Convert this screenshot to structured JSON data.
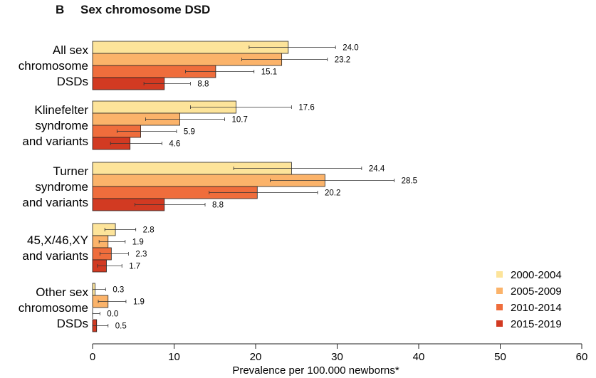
{
  "panel": {
    "letter": "B",
    "title": "Sex chromosome DSD"
  },
  "chart_data": {
    "type": "bar",
    "orientation": "horizontal",
    "xlabel": "Prevalence per 100.000 newborns*",
    "xlim": [
      0,
      60
    ],
    "xticks": [
      0,
      10,
      20,
      30,
      40,
      50,
      60
    ],
    "grid": false,
    "legend_position": "bottom-right",
    "categories": [
      {
        "lines": [
          "All sex",
          "chromosome",
          "DSDs"
        ]
      },
      {
        "lines": [
          "Klinefelter",
          "syndrome",
          "and variants"
        ]
      },
      {
        "lines": [
          "Turner",
          "syndrome",
          "and variants"
        ]
      },
      {
        "lines": [
          "45,X/46,XY",
          "and variants"
        ]
      },
      {
        "lines": [
          "Other sex",
          "chromosome",
          "DSDs"
        ]
      }
    ],
    "series": [
      {
        "name": "2000-2004",
        "color": "#fde49a",
        "values": [
          24.0,
          17.6,
          24.4,
          2.8,
          0.3
        ],
        "labels": [
          "24.0",
          "17.6",
          "24.4",
          "2.8",
          "0.3"
        ],
        "ci": [
          [
            19.2,
            29.8
          ],
          [
            12.0,
            24.4
          ],
          [
            17.3,
            33.0
          ],
          [
            1.5,
            5.3
          ],
          [
            0.0,
            1.6
          ]
        ]
      },
      {
        "name": "2005-2009",
        "color": "#fbb36a",
        "values": [
          23.2,
          10.7,
          28.5,
          1.9,
          1.9
        ],
        "labels": [
          "23.2",
          "10.7",
          "28.5",
          "1.9",
          "1.9"
        ],
        "ci": [
          [
            18.3,
            28.8
          ],
          [
            6.5,
            16.2
          ],
          [
            21.8,
            37.0
          ],
          [
            0.8,
            4.0
          ],
          [
            0.7,
            4.1
          ]
        ]
      },
      {
        "name": "2010-2014",
        "color": "#ef6d3c",
        "values": [
          15.1,
          5.9,
          20.2,
          2.3,
          0.0
        ],
        "labels": [
          "15.1",
          "5.9",
          "20.2",
          "2.3",
          "0.0"
        ],
        "ci": [
          [
            11.4,
            19.8
          ],
          [
            3.0,
            10.3
          ],
          [
            14.3,
            27.6
          ],
          [
            0.9,
            4.4
          ],
          [
            0.0,
            0.9
          ]
        ]
      },
      {
        "name": "2015-2019",
        "color": "#d23a22",
        "values": [
          8.8,
          4.6,
          8.8,
          1.7,
          0.5
        ],
        "labels": [
          "8.8",
          "4.6",
          "8.8",
          "1.7",
          "0.5"
        ],
        "ci": [
          [
            6.3,
            12.0
          ],
          [
            2.2,
            8.5
          ],
          [
            5.2,
            13.8
          ],
          [
            0.6,
            3.6
          ],
          [
            0.0,
            1.9
          ]
        ]
      }
    ]
  }
}
